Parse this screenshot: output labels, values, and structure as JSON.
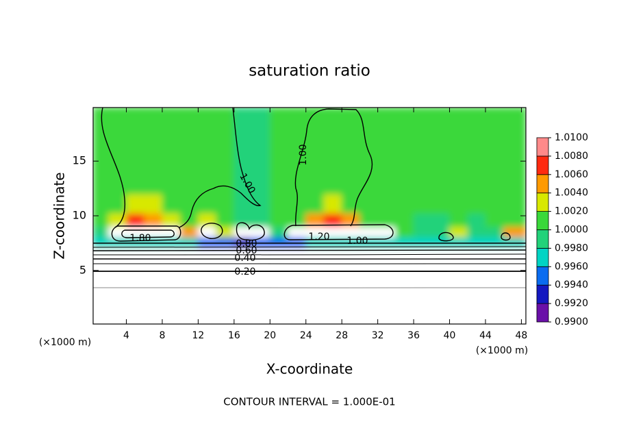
{
  "chart_data": {
    "type": "contour",
    "title": "saturation ratio",
    "x_label": "X-coordinate",
    "y_label": "Z-coordinate",
    "unit_label": "(×1000 m)",
    "footnote": "CONTOUR INTERVAL = 1.000E-01",
    "xlim": [
      0.3,
      48.5
    ],
    "xticks": [
      4,
      8,
      12,
      16,
      20,
      24,
      28,
      32,
      36,
      40,
      44,
      48
    ],
    "ylim": [
      0.1,
      19.9
    ],
    "yticks": [
      5,
      10,
      15
    ],
    "x": [
      1,
      3,
      5,
      7,
      9,
      11,
      13,
      15,
      17,
      19,
      21,
      23,
      25,
      27,
      29,
      31,
      33,
      35,
      37,
      39,
      41,
      43,
      45,
      47
    ],
    "y": [
      1,
      4,
      6.5,
      7.6,
      8.5,
      9.5,
      11,
      13,
      15,
      17,
      19
    ],
    "values": [
      [
        0.1,
        0.1,
        0.1,
        0.1,
        0.1,
        0.1,
        0.1,
        0.1,
        0.1,
        0.1,
        0.1,
        0.1,
        0.1,
        0.1,
        0.1,
        0.1,
        0.1,
        0.1,
        0.1,
        0.1,
        0.1,
        0.1,
        0.1,
        0.1
      ],
      [
        0.25,
        0.25,
        0.25,
        0.25,
        0.25,
        0.25,
        0.25,
        0.25,
        0.25,
        0.25,
        0.25,
        0.25,
        0.25,
        0.25,
        0.25,
        0.25,
        0.25,
        0.25,
        0.25,
        0.25,
        0.25,
        0.25,
        0.25,
        0.25
      ],
      [
        0.6,
        0.6,
        0.6,
        0.6,
        0.6,
        0.6,
        0.6,
        0.6,
        0.6,
        0.6,
        0.6,
        0.6,
        0.6,
        0.6,
        0.6,
        0.6,
        0.6,
        0.6,
        0.6,
        0.6,
        0.6,
        0.6,
        0.6,
        0.6
      ],
      [
        0.9975,
        0.9975,
        0.9972,
        0.9972,
        0.9968,
        0.9965,
        0.996,
        0.9945,
        0.994,
        0.9942,
        0.9955,
        0.996,
        0.9962,
        0.9962,
        0.9965,
        0.997,
        0.9972,
        0.9975,
        0.9975,
        0.9975,
        0.9975,
        0.9975,
        0.9975,
        0.9975
      ],
      [
        0.9995,
        1.4,
        1.4,
        1.4,
        1.3,
        1.006,
        1.5,
        1.003,
        1.5,
        1.5,
        0.9995,
        1.2,
        1.2,
        1.2,
        1.2,
        1.1,
        1.05,
        1.0002,
        1.0,
        0.9995,
        1.004,
        1.0,
        1.0,
        1.005
      ],
      [
        1.0002,
        1.003,
        1.0065,
        1.005,
        1.003,
        1.002,
        1.004,
        1.001,
        0.9995,
        1.0,
        1.0005,
        1.002,
        1.005,
        1.0075,
        1.005,
        1.002,
        1.001,
        1.0005,
        1.0,
        1.0,
        1.001,
        1.0,
        1.0005,
        1.002
      ],
      [
        1.0002,
        1.0015,
        1.003,
        1.0025,
        1.0015,
        1.001,
        1.0005,
        1.0003,
        0.9999,
        1.0,
        1.0003,
        1.001,
        1.002,
        1.003,
        1.002,
        1.001,
        1.0005,
        1.0003,
        1.0002,
        1.0002,
        1.0005,
        1.0003,
        1.0002,
        1.0003
      ],
      [
        1.0002,
        1.001,
        1.0015,
        1.0012,
        1.0008,
        1.0005,
        1.0003,
        1.0002,
        1.0,
        1.0,
        1.0002,
        1.0008,
        1.0012,
        1.0015,
        1.001,
        1.0005,
        1.0003,
        1.0002,
        1.0002,
        1.0002,
        1.0003,
        1.0002,
        1.0002,
        1.0002
      ],
      [
        1.0002,
        1.0006,
        1.0008,
        1.0006,
        1.0005,
        1.0003,
        1.0002,
        1.0002,
        1.0,
        1.0,
        1.0002,
        1.0005,
        1.0006,
        1.0008,
        1.0006,
        1.0003,
        1.0002,
        1.0002,
        1.0002,
        1.0002,
        1.0002,
        1.0002,
        1.0002,
        1.0002
      ],
      [
        1.0001,
        1.0004,
        1.0005,
        1.0004,
        1.0003,
        1.0002,
        1.0001,
        1.0001,
        1.0,
        1.0,
        1.0001,
        1.0003,
        1.0004,
        1.0005,
        1.0004,
        1.0002,
        1.0001,
        1.0001,
        1.0001,
        1.0001,
        1.0001,
        1.0001,
        1.0001,
        1.0001
      ],
      [
        1.0001,
        1.0002,
        1.0003,
        1.0002,
        1.0002,
        1.0001,
        1.0001,
        1.0001,
        1.0,
        1.0,
        1.0001,
        1.0002,
        1.0002,
        1.0003,
        1.0002,
        1.0001,
        1.0001,
        1.0001,
        1.0001,
        1.0001,
        1.0001,
        1.0001,
        1.0001,
        1.0001
      ]
    ],
    "colorbar": {
      "levels": [
        {
          "value": 0.99,
          "label": "0.9900"
        },
        {
          "value": 0.992,
          "label": "0.9920"
        },
        {
          "value": 0.994,
          "label": "0.9940"
        },
        {
          "value": 0.996,
          "label": "0.9960"
        },
        {
          "value": 0.998,
          "label": "0.9980"
        },
        {
          "value": 1.0,
          "label": "1.0000"
        },
        {
          "value": 1.002,
          "label": "1.0020"
        },
        {
          "value": 1.004,
          "label": "1.0040"
        },
        {
          "value": 1.006,
          "label": "1.0060"
        },
        {
          "value": 1.008,
          "label": "1.0080"
        },
        {
          "value": 1.01,
          "label": "1.0100"
        }
      ],
      "colors": [
        "#6a10a8",
        "#1418c0",
        "#0a6cf0",
        "#00d4c4",
        "#22d27a",
        "#3ad83a",
        "#d8e800",
        "#ff9a00",
        "#ff2a10",
        "#ff8a8a"
      ]
    },
    "contours": [
      {
        "value": 0.2,
        "label": "0.20"
      },
      {
        "value": 0.4,
        "label": "0.40"
      },
      {
        "value": 0.6,
        "label": "0.60"
      },
      {
        "value": 0.8,
        "label": "0.80"
      },
      {
        "value": 1.0,
        "label": "1.00"
      },
      {
        "value": 1.2,
        "label": "1.20"
      },
      {
        "value": 1.8,
        "label": "1.80"
      }
    ]
  }
}
